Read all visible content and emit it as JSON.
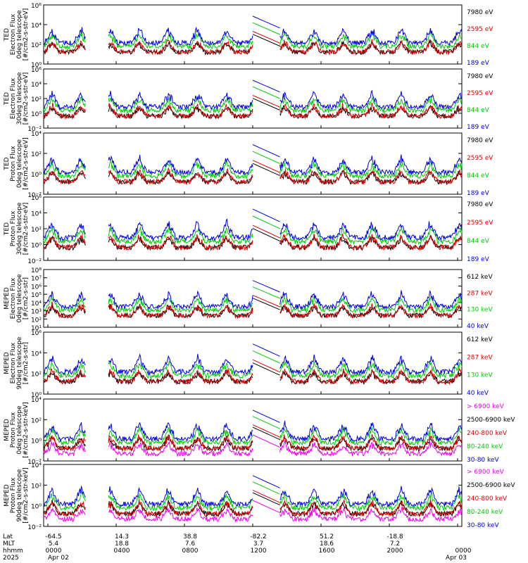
{
  "chart_data": {
    "type": "line",
    "x_tick_labels": {
      "lat": [
        "-64.5",
        "14.3",
        "38.8",
        "-82.2",
        "51.2",
        "-18.8",
        ""
      ],
      "mlt": [
        "5.4",
        "18.8",
        "7.6",
        "3.7",
        "18.6",
        "7.2",
        ""
      ],
      "hhmm": [
        "0000",
        "0400",
        "0800",
        "1200",
        "1600",
        "2000",
        "0000"
      ]
    },
    "row_labels": [
      "Lat",
      "MLT",
      "hhmm",
      "2025"
    ],
    "date_labels": {
      "start": "Apr 02",
      "end": "Apr 03"
    },
    "panels": [
      {
        "ylabel": [
          "TED",
          "Electron Flux",
          "0deg telescope",
          "[#/cm2-s-str-eV]"
        ],
        "yticks": [
          "10⁰",
          "10²",
          "10⁴",
          "10⁶"
        ],
        "series": [
          {
            "name": "7980 eV",
            "color": "#000000"
          },
          {
            "name": "2595 eV",
            "color": "#dd0000"
          },
          {
            "name": "844 eV",
            "color": "#00cc00"
          },
          {
            "name": "189 eV",
            "color": "#0000dd"
          }
        ]
      },
      {
        "ylabel": [
          "TED",
          "Electron Flux",
          "30deg telescope",
          "[#/cm2-s-str-eV]"
        ],
        "yticks": [
          "10⁻²",
          "10⁰",
          "10²",
          "10⁴",
          "10⁶"
        ],
        "series": [
          {
            "name": "7980 eV",
            "color": "#000000"
          },
          {
            "name": "2595 eV",
            "color": "#dd0000"
          },
          {
            "name": "844 eV",
            "color": "#00cc00"
          },
          {
            "name": "189 eV",
            "color": "#0000dd"
          }
        ]
      },
      {
        "ylabel": [
          "TED",
          "Proton Flux",
          "0deg telescope",
          "[#/cm2-s-str-eV]"
        ],
        "yticks": [
          "10⁻²",
          "10⁰",
          "10²",
          "10⁴"
        ],
        "series": [
          {
            "name": "7980 eV",
            "color": "#000000"
          },
          {
            "name": "2595 eV",
            "color": "#dd0000"
          },
          {
            "name": "844 eV",
            "color": "#00cc00"
          },
          {
            "name": "189 eV",
            "color": "#0000dd"
          }
        ]
      },
      {
        "ylabel": [
          "TED",
          "Proton Flux",
          "30deg telescope",
          "[#/cm2-s-str-eV]"
        ],
        "yticks": [
          "10⁻²",
          "10⁰",
          "10²",
          "10⁴",
          "10⁶"
        ],
        "series": [
          {
            "name": "7980 eV",
            "color": "#000000"
          },
          {
            "name": "2595 eV",
            "color": "#dd0000"
          },
          {
            "name": "844 eV",
            "color": "#00cc00"
          },
          {
            "name": "189 eV",
            "color": "#0000dd"
          }
        ]
      },
      {
        "ylabel": [
          "MEPED",
          "Electron Flux",
          "0deg telescope",
          "[#/cm2-s-str]"
        ],
        "yticks": [
          "10¹",
          "10²",
          "10³",
          "10⁴",
          "10⁵",
          "10⁶",
          "10⁷",
          "10⁸"
        ],
        "series": [
          {
            "name": "612 keV",
            "color": "#000000"
          },
          {
            "name": "287 keV",
            "color": "#dd0000"
          },
          {
            "name": "130 keV",
            "color": "#00cc00"
          },
          {
            "name": "40 keV",
            "color": "#0000dd"
          }
        ]
      },
      {
        "ylabel": [
          "MEPED",
          "Electron Flux",
          "90deg telescope",
          "[#/cm2-s-str]"
        ],
        "yticks": [
          "10⁰",
          "10²",
          "10⁴",
          "10⁶"
        ],
        "series": [
          {
            "name": "612 keV",
            "color": "#000000"
          },
          {
            "name": "287 keV",
            "color": "#dd0000"
          },
          {
            "name": "130 keV",
            "color": "#00cc00"
          },
          {
            "name": "40 keV",
            "color": "#0000dd"
          }
        ]
      },
      {
        "ylabel": [
          "MEPED",
          "Proton Flux",
          "0deg telescope",
          "[#/cm2-s-str-keV]"
        ],
        "yticks": [
          "10⁻²",
          "10⁰",
          "10²",
          "10⁴"
        ],
        "series": [
          {
            "name": "> 6900 keV",
            "color": "#ee00ee"
          },
          {
            "name": "2500-6900 keV",
            "color": "#000000"
          },
          {
            "name": "240-800 keV",
            "color": "#dd0000"
          },
          {
            "name": "80-240 keV",
            "color": "#00cc00"
          },
          {
            "name": "30-80 keV",
            "color": "#0000dd"
          }
        ]
      },
      {
        "ylabel": [
          "MEPED",
          "Proton Flux",
          "90deg telescope",
          "[#/cm2-s-str-keV]"
        ],
        "yticks": [
          "10⁻²",
          "10⁰",
          "10²",
          "10⁴"
        ],
        "series": [
          {
            "name": "> 6900 keV",
            "color": "#ee00ee"
          },
          {
            "name": "2500-6900 keV",
            "color": "#000000"
          },
          {
            "name": "240-800 keV",
            "color": "#dd0000"
          },
          {
            "name": "80-240 keV",
            "color": "#00cc00"
          },
          {
            "name": "30-80 keV",
            "color": "#0000dd"
          }
        ]
      }
    ]
  }
}
